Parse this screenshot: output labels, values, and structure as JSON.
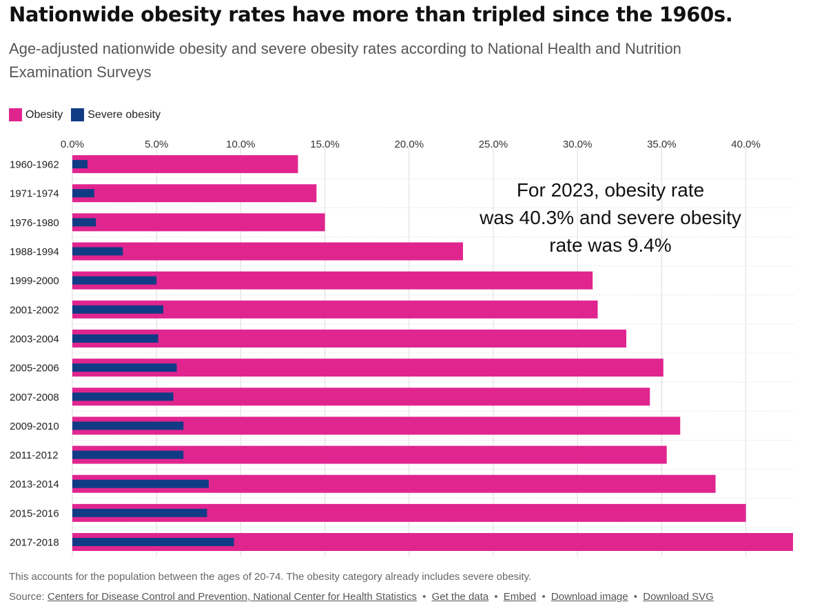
{
  "header": {
    "title": "Nationwide obesity rates have more than tripled since the 1960s.",
    "subtitle": "Age-adjusted nationwide obesity and severe obesity rates according to National Health and Nutrition Examination Surveys"
  },
  "colors": {
    "obesity": "#e0258f",
    "severe": "#123b85",
    "grid": "#dcdcdc"
  },
  "legend": {
    "obesity_label": "Obesity",
    "severe_label": "Severe obesity"
  },
  "chart_data": {
    "type": "bar",
    "orientation": "horizontal",
    "categories": [
      "1960-1962",
      "1971-1974",
      "1976-1980",
      "1988-1994",
      "1999-2000",
      "2001-2002",
      "2003-2004",
      "2005-2006",
      "2007-2008",
      "2009-2010",
      "2011-2012",
      "2013-2014",
      "2015-2016",
      "2017-2018"
    ],
    "series": [
      {
        "name": "Obesity",
        "values": [
          13.4,
          14.5,
          15.0,
          23.2,
          30.9,
          31.2,
          32.9,
          35.1,
          34.3,
          36.1,
          35.3,
          38.2,
          40.0,
          42.8
        ]
      },
      {
        "name": "Severe obesity",
        "values": [
          0.9,
          1.3,
          1.4,
          3.0,
          5.0,
          5.4,
          5.1,
          6.2,
          6.0,
          6.6,
          6.6,
          8.1,
          8.0,
          9.6
        ]
      }
    ],
    "xticks": [
      "0.0%",
      "5.0%",
      "10.0%",
      "15.0%",
      "20.0%",
      "25.0%",
      "30.0%",
      "35.0%",
      "40.0%"
    ],
    "xlim": [
      0,
      42.8
    ],
    "grid": true,
    "legend_position": "top-left",
    "annotation": "For 2023, obesity rate was 40.3% and severe obesity rate was 9.4%"
  },
  "footer": {
    "note": "This accounts for the population between the ages of 20-74. The obesity category already includes severe obesity.",
    "source_prefix": "Source:",
    "source_link": "Centers for Disease Control and Prevention, National Center for Health Statistics",
    "links": [
      "Get the data",
      "Embed",
      "Download image",
      "Download SVG"
    ],
    "separator": "•"
  }
}
